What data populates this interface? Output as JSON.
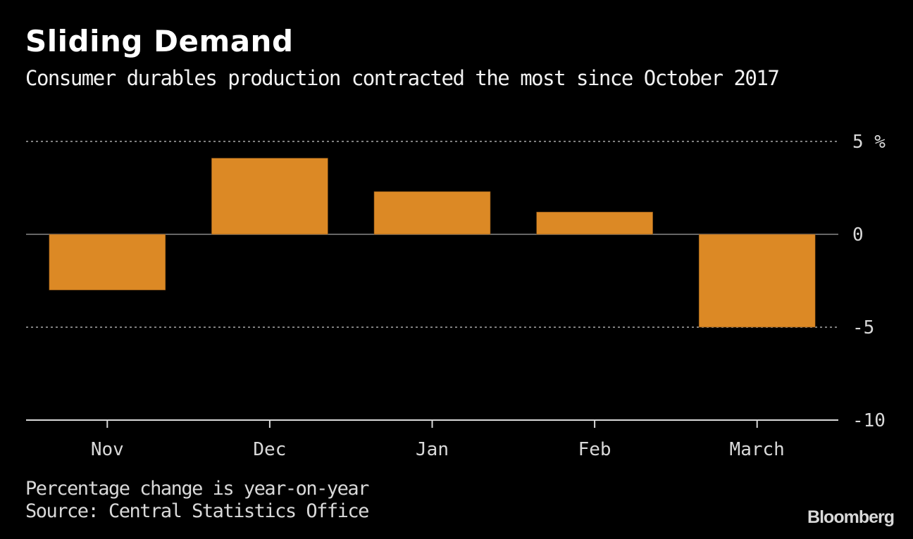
{
  "header": {
    "title": "Sliding Demand",
    "subtitle": "Consumer durables production contracted the most since October 2017"
  },
  "footer": {
    "note": "Percentage change is year-on-year",
    "source": "Source: Central Statistics Office",
    "brand": "Bloomberg"
  },
  "colors": {
    "background": "#000000",
    "bar": "#dc8925",
    "gridline": "#808080",
    "zero_line": "#666666",
    "axis": "#d9d9d9"
  },
  "chart_data": {
    "type": "bar",
    "title": "Sliding Demand",
    "subtitle": "Consumer durables production contracted the most since October 2017",
    "categories": [
      "Nov",
      "Dec",
      "Jan",
      "Feb",
      "March"
    ],
    "values": [
      -3.0,
      4.1,
      2.3,
      1.2,
      -5.0
    ],
    "xlabel": "",
    "ylabel": "%",
    "ylim": [
      -10,
      5
    ],
    "yticks": [
      5,
      0,
      -5,
      -10
    ],
    "ytick_labels": [
      "5 %",
      "0",
      "-5",
      "-10"
    ],
    "y_axis_side": "right",
    "grid": true,
    "legend": "none"
  }
}
